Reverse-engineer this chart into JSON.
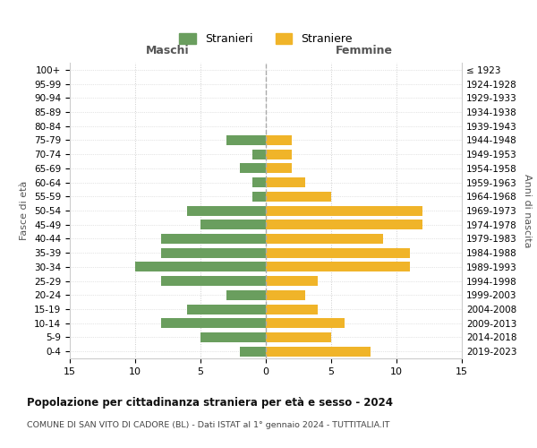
{
  "age_groups": [
    "0-4",
    "5-9",
    "10-14",
    "15-19",
    "20-24",
    "25-29",
    "30-34",
    "35-39",
    "40-44",
    "45-49",
    "50-54",
    "55-59",
    "60-64",
    "65-69",
    "70-74",
    "75-79",
    "80-84",
    "85-89",
    "90-94",
    "95-99",
    "100+"
  ],
  "birth_years": [
    "2019-2023",
    "2014-2018",
    "2009-2013",
    "2004-2008",
    "1999-2003",
    "1994-1998",
    "1989-1993",
    "1984-1988",
    "1979-1983",
    "1974-1978",
    "1969-1973",
    "1964-1968",
    "1959-1963",
    "1954-1958",
    "1949-1953",
    "1944-1948",
    "1939-1943",
    "1934-1938",
    "1929-1933",
    "1924-1928",
    "≤ 1923"
  ],
  "males": [
    2,
    5,
    8,
    6,
    3,
    8,
    10,
    8,
    8,
    5,
    6,
    1,
    1,
    2,
    1,
    3,
    0,
    0,
    0,
    0,
    0
  ],
  "females": [
    8,
    5,
    6,
    4,
    3,
    4,
    11,
    11,
    9,
    12,
    12,
    5,
    3,
    2,
    2,
    2,
    0,
    0,
    0,
    0,
    0
  ],
  "male_color": "#6a9e5e",
  "female_color": "#f0b429",
  "title": "Popolazione per cittadinanza straniera per età e sesso - 2024",
  "subtitle": "COMUNE DI SAN VITO DI CADORE (BL) - Dati ISTAT al 1° gennaio 2024 - TUTTITALIA.IT",
  "xlabel_left": "Maschi",
  "xlabel_right": "Femmine",
  "ylabel_left": "Fasce di età",
  "ylabel_right": "Anni di nascita",
  "legend_male": "Stranieri",
  "legend_female": "Straniere",
  "xlim": 15,
  "background_color": "#ffffff",
  "grid_color": "#cccccc"
}
